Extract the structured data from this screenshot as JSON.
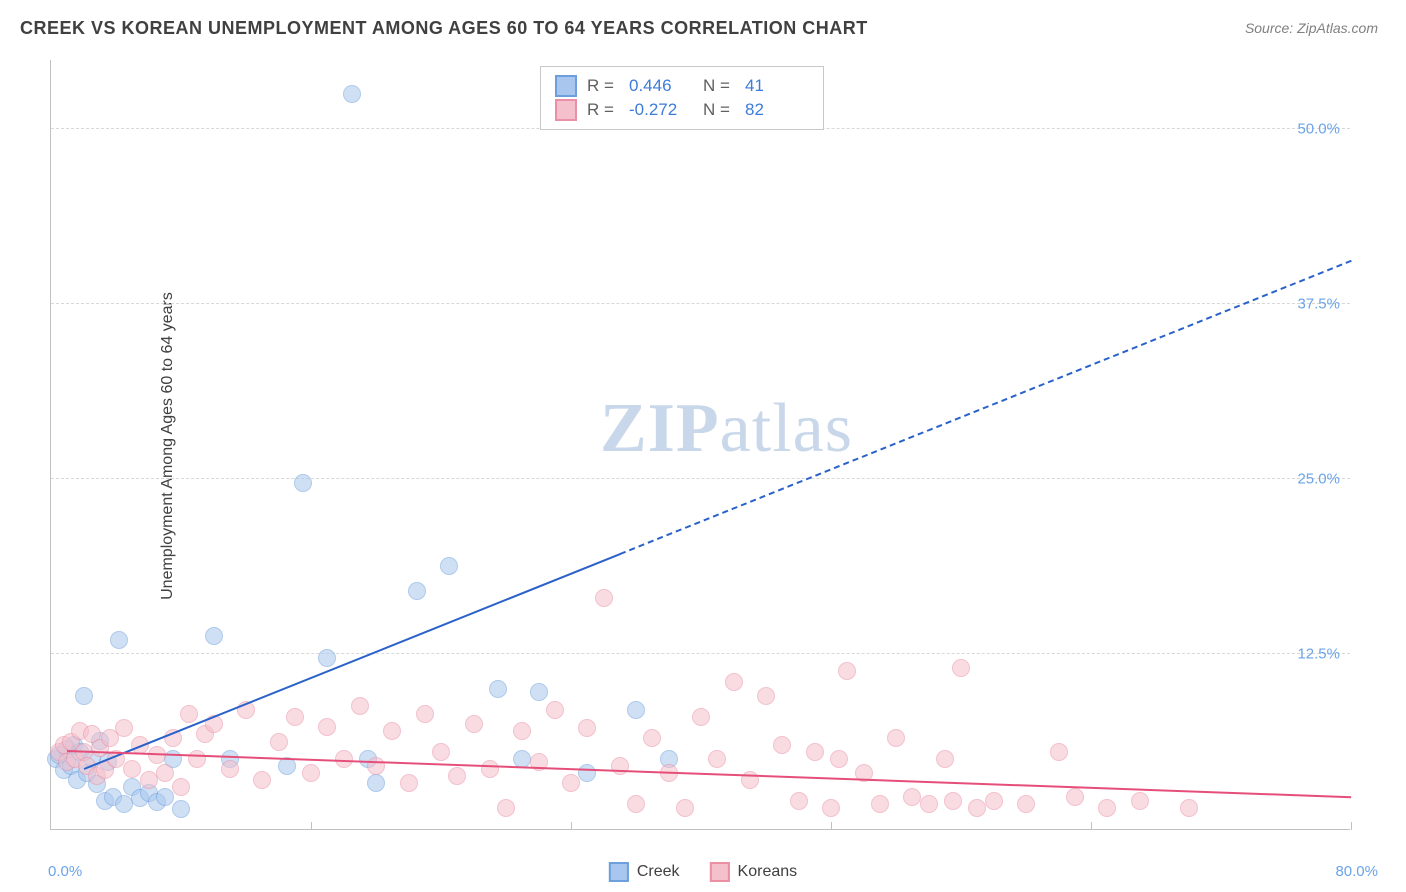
{
  "chart": {
    "type": "scatter",
    "title": "CREEK VS KOREAN UNEMPLOYMENT AMONG AGES 60 TO 64 YEARS CORRELATION CHART",
    "source_label": "Source: ZipAtlas.com",
    "ylabel": "Unemployment Among Ages 60 to 64 years",
    "watermark_main": "ZIP",
    "watermark_sub": "atlas",
    "background_color": "#ffffff",
    "grid_color": "#d8d8d8",
    "axis_color": "#c0c0c0",
    "xlim": [
      0,
      80
    ],
    "ylim": [
      0,
      55
    ],
    "x_min_label": "0.0%",
    "x_max_label": "80.0%",
    "x_tick_positions": [
      0,
      16,
      32,
      48,
      64,
      80
    ],
    "y_ticks": [
      {
        "value": 12.5,
        "label": "12.5%"
      },
      {
        "value": 25.0,
        "label": "25.0%"
      },
      {
        "value": 37.5,
        "label": "37.5%"
      },
      {
        "value": 50.0,
        "label": "50.0%"
      }
    ],
    "tick_label_color": "#6aa3e8",
    "point_radius": 9,
    "point_opacity": 0.55,
    "series": [
      {
        "name": "Creek",
        "color_fill": "#a9c7ee",
        "color_stroke": "#6d9fdc",
        "r_label": "R =",
        "r_value": "0.446",
        "n_label": "N =",
        "n_value": "41",
        "trend": {
          "x1": 2,
          "y1": 4.2,
          "x2": 80,
          "y2": 40.5,
          "solid_until_x": 35,
          "color": "#2a62c9",
          "width": 2.5
        },
        "points": [
          [
            0.3,
            5.0
          ],
          [
            0.5,
            5.3
          ],
          [
            0.8,
            4.2
          ],
          [
            1.0,
            5.7
          ],
          [
            1.2,
            4.5
          ],
          [
            1.4,
            6.0
          ],
          [
            1.6,
            3.5
          ],
          [
            1.8,
            5.5
          ],
          [
            2.0,
            9.5
          ],
          [
            2.2,
            4.0
          ],
          [
            2.5,
            5.0
          ],
          [
            2.8,
            3.2
          ],
          [
            3.0,
            6.3
          ],
          [
            3.3,
            2.0
          ],
          [
            3.5,
            4.8
          ],
          [
            3.8,
            2.3
          ],
          [
            4.2,
            13.5
          ],
          [
            4.5,
            1.8
          ],
          [
            5.0,
            3.0
          ],
          [
            5.5,
            2.2
          ],
          [
            6.0,
            2.6
          ],
          [
            6.5,
            1.9
          ],
          [
            7.0,
            2.3
          ],
          [
            7.5,
            5.0
          ],
          [
            8.0,
            1.4
          ],
          [
            10.0,
            13.8
          ],
          [
            11.0,
            5.0
          ],
          [
            14.5,
            4.5
          ],
          [
            15.5,
            24.7
          ],
          [
            17.0,
            12.2
          ],
          [
            18.5,
            52.5
          ],
          [
            19.5,
            5.0
          ],
          [
            20.0,
            3.3
          ],
          [
            22.5,
            17.0
          ],
          [
            24.5,
            18.8
          ],
          [
            27.5,
            10.0
          ],
          [
            29.0,
            5.0
          ],
          [
            30.0,
            9.8
          ],
          [
            33.0,
            4.0
          ],
          [
            36.0,
            8.5
          ],
          [
            38.0,
            5.0
          ]
        ]
      },
      {
        "name": "Koreans",
        "color_fill": "#f4c0cc",
        "color_stroke": "#ea8fa5",
        "r_label": "R =",
        "r_value": "-0.272",
        "n_label": "N =",
        "n_value": "82",
        "trend": {
          "x1": 1,
          "y1": 5.5,
          "x2": 80,
          "y2": 2.2,
          "solid_until_x": 80,
          "color": "#e64e7a",
          "width": 2.5
        },
        "points": [
          [
            0.5,
            5.5
          ],
          [
            0.8,
            6.0
          ],
          [
            1.0,
            4.8
          ],
          [
            1.2,
            6.2
          ],
          [
            1.5,
            5.0
          ],
          [
            1.8,
            7.0
          ],
          [
            2.0,
            5.5
          ],
          [
            2.2,
            4.5
          ],
          [
            2.5,
            6.8
          ],
          [
            2.8,
            3.8
          ],
          [
            3.0,
            5.8
          ],
          [
            3.3,
            4.2
          ],
          [
            3.6,
            6.5
          ],
          [
            4.0,
            5.0
          ],
          [
            4.5,
            7.2
          ],
          [
            5.0,
            4.3
          ],
          [
            5.5,
            6.0
          ],
          [
            6.0,
            3.5
          ],
          [
            6.5,
            5.3
          ],
          [
            7.0,
            4.0
          ],
          [
            7.5,
            6.5
          ],
          [
            8.0,
            3.0
          ],
          [
            8.5,
            8.2
          ],
          [
            9.0,
            5.0
          ],
          [
            9.5,
            6.8
          ],
          [
            10.0,
            7.5
          ],
          [
            11.0,
            4.3
          ],
          [
            12.0,
            8.5
          ],
          [
            13.0,
            3.5
          ],
          [
            14.0,
            6.2
          ],
          [
            15.0,
            8.0
          ],
          [
            16.0,
            4.0
          ],
          [
            17.0,
            7.3
          ],
          [
            18.0,
            5.0
          ],
          [
            19.0,
            8.8
          ],
          [
            20.0,
            4.5
          ],
          [
            21.0,
            7.0
          ],
          [
            22.0,
            3.3
          ],
          [
            23.0,
            8.2
          ],
          [
            24.0,
            5.5
          ],
          [
            25.0,
            3.8
          ],
          [
            26.0,
            7.5
          ],
          [
            27.0,
            4.3
          ],
          [
            28.0,
            1.5
          ],
          [
            29.0,
            7.0
          ],
          [
            30.0,
            4.8
          ],
          [
            31.0,
            8.5
          ],
          [
            32.0,
            3.3
          ],
          [
            33.0,
            7.2
          ],
          [
            34.0,
            16.5
          ],
          [
            35.0,
            4.5
          ],
          [
            36.0,
            1.8
          ],
          [
            37.0,
            6.5
          ],
          [
            38.0,
            4.0
          ],
          [
            39.0,
            1.5
          ],
          [
            40.0,
            8.0
          ],
          [
            41.0,
            5.0
          ],
          [
            42.0,
            10.5
          ],
          [
            43.0,
            3.5
          ],
          [
            44.0,
            9.5
          ],
          [
            45.0,
            6.0
          ],
          [
            46.0,
            2.0
          ],
          [
            47.0,
            5.5
          ],
          [
            48.0,
            1.5
          ],
          [
            49.0,
            11.3
          ],
          [
            50.0,
            4.0
          ],
          [
            51.0,
            1.8
          ],
          [
            52.0,
            6.5
          ],
          [
            53.0,
            2.3
          ],
          [
            54.0,
            1.8
          ],
          [
            55.0,
            5.0
          ],
          [
            56.0,
            11.5
          ],
          [
            57.0,
            1.5
          ],
          [
            58.0,
            2.0
          ],
          [
            60.0,
            1.8
          ],
          [
            63.0,
            2.3
          ],
          [
            65.0,
            1.5
          ],
          [
            67.0,
            2.0
          ],
          [
            70.0,
            1.5
          ],
          [
            62.0,
            5.5
          ],
          [
            48.5,
            5.0
          ],
          [
            55.5,
            2.0
          ]
        ]
      }
    ],
    "bottom_legend": [
      {
        "label": "Creek",
        "fill": "#a9c7ee",
        "stroke": "#6d9fdc"
      },
      {
        "label": "Koreans",
        "fill": "#f4c0cc",
        "stroke": "#ea8fa5"
      }
    ]
  }
}
